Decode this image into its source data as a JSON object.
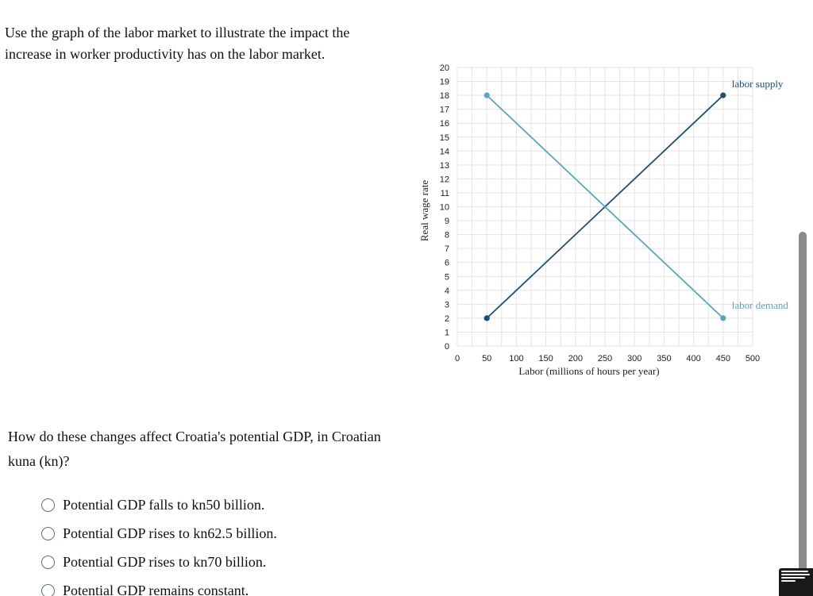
{
  "instruction": "Use the graph of the labor market to illustrate the impact the increase in worker productivity has on the labor market.",
  "question": "How do these changes affect Croatia's potential GDP, in Croatian kuna (kn)?",
  "options": [
    "Potential GDP falls to kn50 billion.",
    "Potential GDP rises to kn62.5 billion.",
    "Potential GDP rises to kn70 billion.",
    "Potential GDP remains constant."
  ],
  "chart_data": {
    "type": "line",
    "title": "",
    "xlabel": "Labor (millions of hours per year)",
    "ylabel": "Real wage rate",
    "xlim": [
      0,
      500
    ],
    "ylim": [
      0,
      20
    ],
    "x_ticks": [
      0,
      50,
      100,
      150,
      200,
      250,
      300,
      350,
      400,
      450,
      500
    ],
    "y_ticks": [
      0,
      1,
      2,
      3,
      4,
      5,
      6,
      7,
      8,
      9,
      10,
      11,
      12,
      13,
      14,
      15,
      16,
      17,
      18,
      19,
      20
    ],
    "grid": true,
    "series": [
      {
        "name": "labor supply",
        "color": "#1f4e73",
        "points": [
          [
            50,
            2
          ],
          [
            450,
            18
          ]
        ]
      },
      {
        "name": "labor demand",
        "color": "#5ba6bc",
        "points": [
          [
            50,
            18
          ],
          [
            450,
            2
          ]
        ]
      }
    ]
  },
  "colors": {
    "grid": "#e3e3e3",
    "supply": "#1f4e73",
    "demand": "#5ba6bc"
  }
}
